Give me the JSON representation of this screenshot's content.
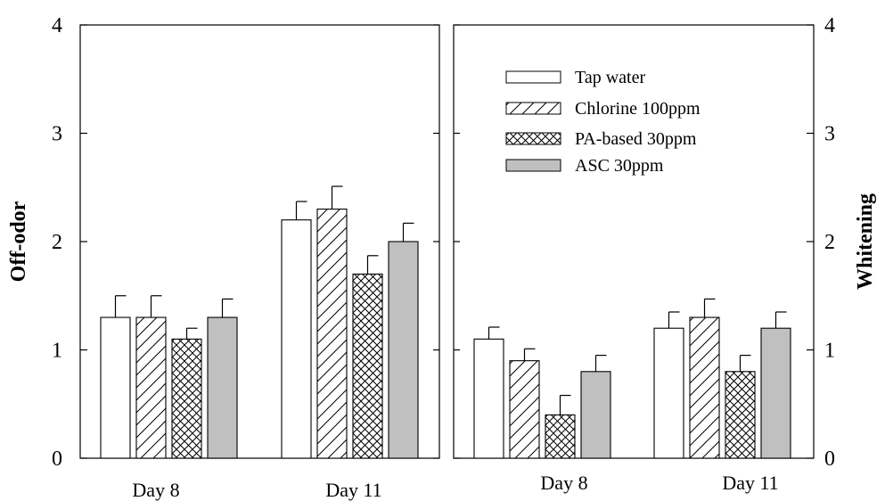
{
  "chart_data": [
    {
      "type": "bar",
      "panel": "left",
      "ylabel": "Off-odor",
      "ylim": [
        0,
        4
      ],
      "yticks": [
        "0",
        "1",
        "2",
        "3",
        "4"
      ],
      "categories": [
        "Day 8",
        "Day 11"
      ],
      "series": [
        {
          "name": "Tap water",
          "values": [
            1.3,
            2.2
          ],
          "errors": [
            0.2,
            0.17
          ]
        },
        {
          "name": "Chlorine 100ppm",
          "values": [
            1.3,
            2.3
          ],
          "errors": [
            0.2,
            0.21
          ]
        },
        {
          "name": "PA-based 30ppm",
          "values": [
            1.1,
            1.7
          ],
          "errors": [
            0.1,
            0.17
          ]
        },
        {
          "name": "ASC 30ppm",
          "values": [
            1.3,
            2.0
          ],
          "errors": [
            0.17,
            0.17
          ]
        }
      ],
      "grid": false
    },
    {
      "type": "bar",
      "panel": "right",
      "ylabel": "Whitening",
      "ylim": [
        0,
        4
      ],
      "yticks": [
        "0",
        "1",
        "2",
        "3",
        "4"
      ],
      "categories": [
        "Day 8",
        "Day 11"
      ],
      "series": [
        {
          "name": "Tap water",
          "values": [
            1.1,
            1.2
          ],
          "errors": [
            0.11,
            0.15
          ]
        },
        {
          "name": "Chlorine 100ppm",
          "values": [
            0.9,
            1.3
          ],
          "errors": [
            0.11,
            0.17
          ]
        },
        {
          "name": "PA-based 30ppm",
          "values": [
            0.4,
            0.8
          ],
          "errors": [
            0.18,
            0.15
          ]
        },
        {
          "name": "ASC 30ppm",
          "values": [
            0.8,
            1.2
          ],
          "errors": [
            0.15,
            0.15
          ]
        }
      ],
      "legend_position": "top",
      "grid": false
    }
  ],
  "legend": {
    "entries": [
      {
        "label": "Tap water",
        "pattern": "none"
      },
      {
        "label": "Chlorine 100ppm",
        "pattern": "diagonal"
      },
      {
        "label": "PA-based 30ppm",
        "pattern": "crosshatch"
      },
      {
        "label": "ASC 30ppm",
        "pattern": "solid-gray"
      }
    ],
    "gray_color": "#c0c0c0"
  }
}
